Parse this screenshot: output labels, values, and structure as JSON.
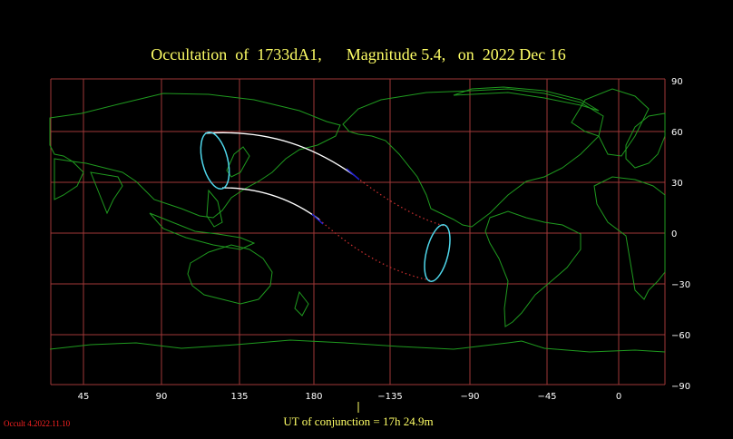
{
  "title": "Occultation  of  1733dA1,      Magnitude 5.4,   on  2022 Dec 16",
  "footer": {
    "ut_conjunction": "UT of conjunction = 17h 24.9m",
    "version": "Occult 4.2022.11.10"
  },
  "axes": {
    "lat_labels": [
      "90",
      "60",
      "30",
      "0",
      "−30",
      "−60",
      "−90"
    ],
    "lon_labels": [
      "45",
      "90",
      "135",
      "180",
      "−135",
      "−90",
      "−45",
      "0"
    ]
  },
  "colors": {
    "background": "#000000",
    "grid": "#a03838",
    "coastline": "#1f9a1f",
    "title": "#ffff66",
    "ellipse": "#4fd8ec",
    "visible_path": "#ffffff",
    "invisible_path": "#d03030",
    "twilight_path": "#2020d0"
  }
}
